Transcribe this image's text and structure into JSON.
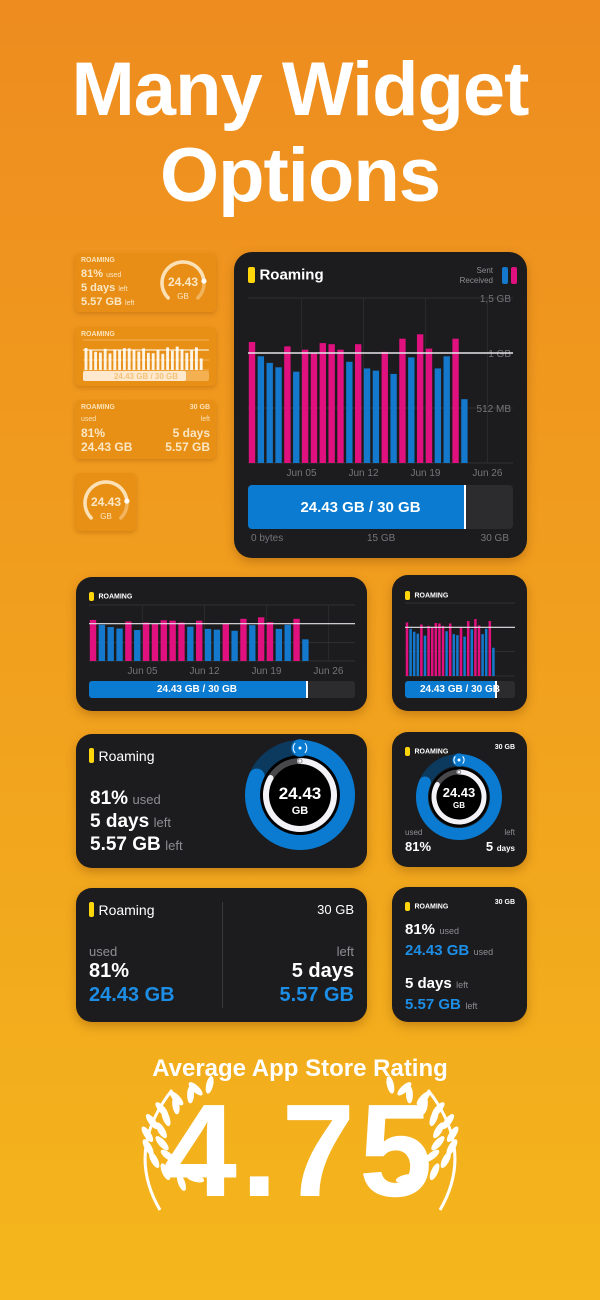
{
  "headline": {
    "line1": "Many Widget",
    "line2": "Options"
  },
  "widget": {
    "title": "Roaming",
    "title_caps": "ROAMING",
    "quota": "30 GB",
    "used_pct": "81%",
    "used_label": "used",
    "used_gb": "24.43 GB",
    "used_value": "24.43",
    "unit": "GB",
    "days_left": "5 days",
    "days_num": "5",
    "days_word": "days",
    "left_label": "left",
    "left_gb": "5.57 GB",
    "usage_text": "24.43 GB / 30 GB",
    "usage_fraction": 0.814,
    "days_elapsed_fraction": 0.833,
    "legend": {
      "sent": "Sent",
      "received": "Received"
    },
    "bar_axis": {
      "min": "0 bytes",
      "mid": "15 GB",
      "max": "30 GB"
    },
    "colors": {
      "sent": "#1478CC",
      "received": "#E0117F",
      "accent": "#FFD60A",
      "bg": "#1c1c1e"
    },
    "icon": "antenna-radiowaves-icon"
  },
  "chart_data": {
    "type": "bar",
    "y_ticks": [
      "512 MB",
      "1 GB",
      "1,5 GB"
    ],
    "y_tick_values": [
      0.5,
      1,
      1.5
    ],
    "ylim": [
      0,
      1.5
    ],
    "limit_line": 1,
    "x_ticks": [
      "Jun 05",
      "Jun 12",
      "Jun 19",
      "Jun 26"
    ],
    "series_legend": [
      {
        "name": "Sent",
        "color": "#1478CC"
      },
      {
        "name": "Received",
        "color": "#E0117F"
      }
    ],
    "bars": [
      {
        "v": 1.1,
        "s": "received"
      },
      {
        "v": 0.97,
        "s": "sent"
      },
      {
        "v": 0.91,
        "s": "sent"
      },
      {
        "v": 0.87,
        "s": "sent"
      },
      {
        "v": 1.06,
        "s": "received"
      },
      {
        "v": 0.83,
        "s": "sent"
      },
      {
        "v": 1.03,
        "s": "received"
      },
      {
        "v": 1.0,
        "s": "received"
      },
      {
        "v": 1.09,
        "s": "received"
      },
      {
        "v": 1.08,
        "s": "received"
      },
      {
        "v": 1.03,
        "s": "received"
      },
      {
        "v": 0.92,
        "s": "sent"
      },
      {
        "v": 1.08,
        "s": "received"
      },
      {
        "v": 0.86,
        "s": "sent"
      },
      {
        "v": 0.84,
        "s": "sent"
      },
      {
        "v": 1.01,
        "s": "received"
      },
      {
        "v": 0.81,
        "s": "sent"
      },
      {
        "v": 1.13,
        "s": "received"
      },
      {
        "v": 0.96,
        "s": "sent"
      },
      {
        "v": 1.17,
        "s": "received"
      },
      {
        "v": 1.04,
        "s": "received"
      },
      {
        "v": 0.86,
        "s": "sent"
      },
      {
        "v": 0.97,
        "s": "sent"
      },
      {
        "v": 1.13,
        "s": "received"
      },
      {
        "v": 0.58,
        "s": "sent"
      }
    ]
  },
  "rating": {
    "label": "Average App Store Rating",
    "value": "4.75"
  }
}
